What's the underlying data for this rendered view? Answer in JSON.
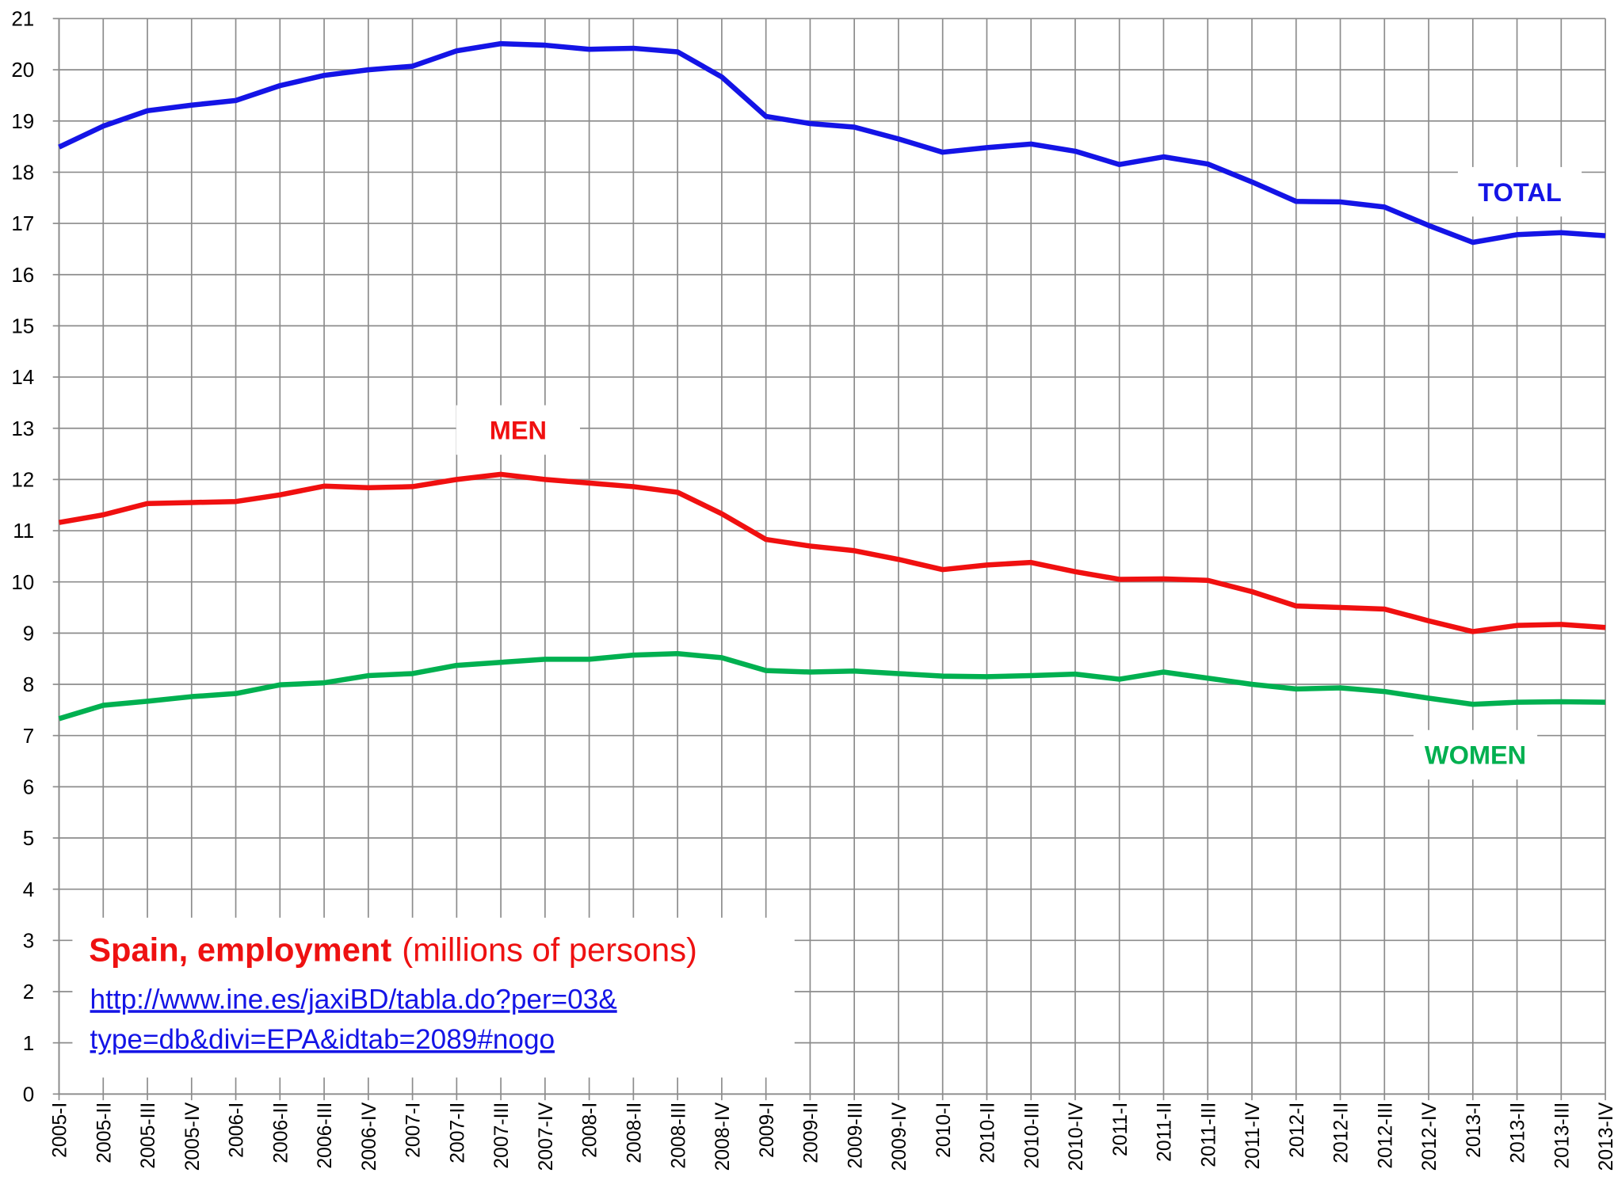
{
  "chart_data": {
    "type": "line",
    "title": "Spain, employment",
    "subtitle": "(millions of persons)",
    "source_lines": [
      "http://www.ine.es/jaxiBD/tabla.do?per=03&",
      "type=db&divi=EPA&idtab=2089#nogo"
    ],
    "categories": [
      "2005-I",
      "2005-II",
      "2005-III",
      "2005-IV",
      "2006-I",
      "2006-II",
      "2006-III",
      "2006-IV",
      "2007-I",
      "2007-II",
      "2007-III",
      "2007-IV",
      "2008-I",
      "2008-II",
      "2008-III",
      "2008-IV",
      "2009-I",
      "2009-II",
      "2009-III",
      "2009-IV",
      "2010-I",
      "2010-II",
      "2010-III",
      "2010-IV",
      "2011-I",
      "2011-II",
      "2011-III",
      "2011-IV",
      "2012-I",
      "2012-II",
      "2012-III",
      "2012-IV",
      "2013-I",
      "2013-II",
      "2013-III",
      "2013-IV"
    ],
    "series": [
      {
        "name": "TOTAL",
        "color": "#1414e6",
        "values": [
          18.49,
          18.9,
          19.2,
          19.31,
          19.4,
          19.69,
          19.89,
          20.0,
          20.07,
          20.37,
          20.51,
          20.48,
          20.4,
          20.42,
          20.35,
          19.86,
          19.09,
          18.95,
          18.88,
          18.65,
          18.39,
          18.48,
          18.55,
          18.41,
          18.15,
          18.3,
          18.16,
          17.81,
          17.43,
          17.42,
          17.32,
          16.96,
          16.63,
          16.78,
          16.82,
          16.76
        ]
      },
      {
        "name": "MEN",
        "color": "#f01010",
        "values": [
          11.16,
          11.31,
          11.53,
          11.55,
          11.57,
          11.7,
          11.87,
          11.84,
          11.86,
          12.0,
          12.1,
          12.0,
          11.93,
          11.86,
          11.75,
          11.33,
          10.83,
          10.7,
          10.61,
          10.44,
          10.24,
          10.33,
          10.38,
          10.2,
          10.05,
          10.06,
          10.03,
          9.81,
          9.53,
          9.5,
          9.47,
          9.24,
          9.03,
          9.15,
          9.17,
          9.11
        ]
      },
      {
        "name": "WOMEN",
        "color": "#00b050",
        "values": [
          7.33,
          7.59,
          7.67,
          7.76,
          7.82,
          7.99,
          8.03,
          8.17,
          8.21,
          8.37,
          8.43,
          8.49,
          8.49,
          8.57,
          8.6,
          8.52,
          8.27,
          8.24,
          8.26,
          8.21,
          8.16,
          8.15,
          8.17,
          8.2,
          8.1,
          8.24,
          8.12,
          8.0,
          7.91,
          7.93,
          7.86,
          7.73,
          7.61,
          7.65,
          7.66,
          7.65
        ]
      }
    ],
    "ylim": [
      0,
      21
    ],
    "yticks": [
      0,
      1,
      2,
      3,
      4,
      5,
      6,
      7,
      8,
      9,
      10,
      11,
      12,
      13,
      14,
      15,
      16,
      17,
      18,
      19,
      20,
      21
    ],
    "grid": true
  }
}
